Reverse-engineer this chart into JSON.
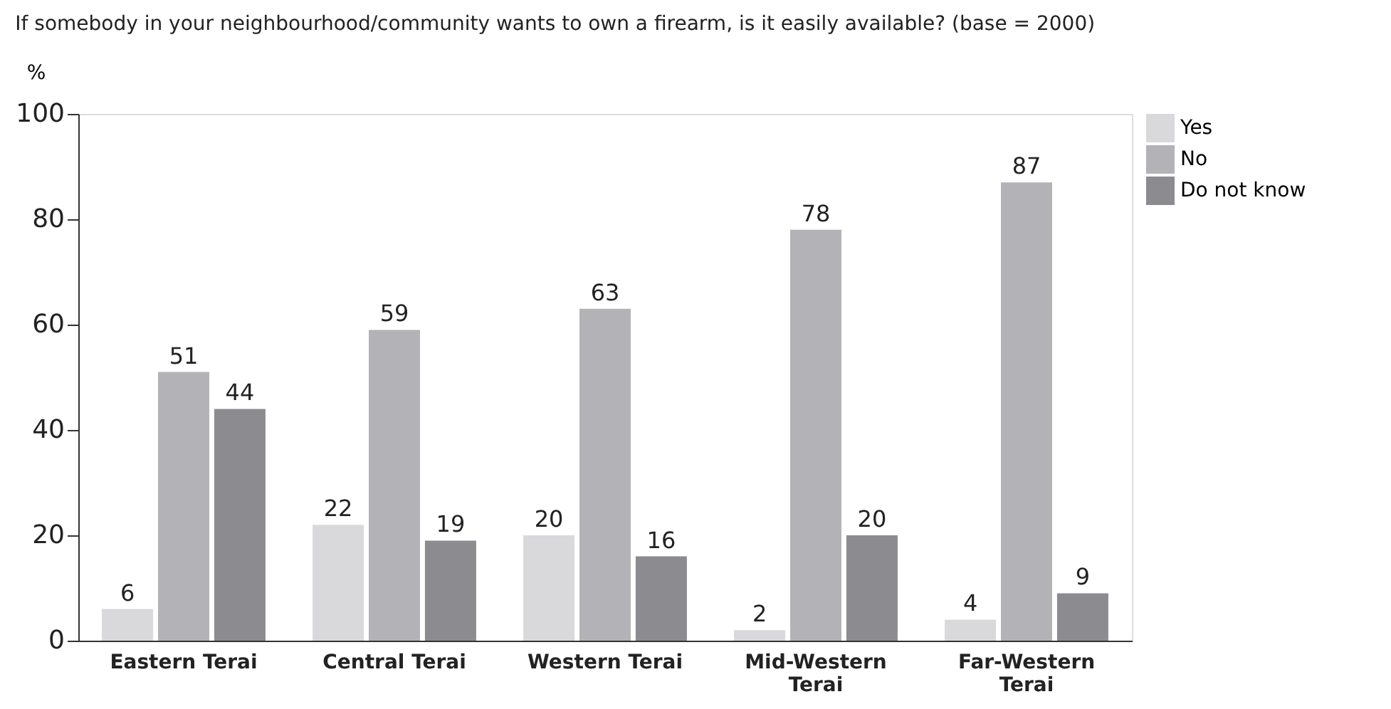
{
  "chart_data": {
    "type": "bar",
    "subtitle": "If somebody in your neighbourhood/community wants to own a firearm, is it easily available? (base = 2000)",
    "ylabel": "%",
    "categories": [
      "Eastern Terai",
      "Central Terai",
      "Western Terai",
      "Mid-Western Terai",
      "Far-Western Terai"
    ],
    "series": [
      {
        "name": "Yes",
        "color": "#d9d9db",
        "values": [
          6,
          22,
          20,
          2,
          4
        ]
      },
      {
        "name": "No",
        "color": "#b3b3b7",
        "values": [
          51,
          59,
          63,
          78,
          87
        ]
      },
      {
        "name": "Do not know",
        "color": "#8c8c90",
        "values": [
          44,
          19,
          16,
          20,
          9
        ]
      }
    ],
    "ylim": [
      0,
      100
    ],
    "yticks": [
      0,
      20,
      40,
      60,
      80,
      100
    ],
    "data_labels": true,
    "legend": "top right",
    "grid": false
  }
}
